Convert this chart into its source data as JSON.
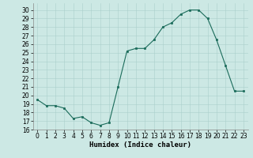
{
  "x": [
    0,
    1,
    2,
    3,
    4,
    5,
    6,
    7,
    8,
    9,
    10,
    11,
    12,
    13,
    14,
    15,
    16,
    17,
    18,
    19,
    20,
    21,
    22,
    23
  ],
  "y": [
    19.5,
    18.8,
    18.8,
    18.5,
    17.3,
    17.5,
    16.8,
    16.5,
    16.8,
    21.0,
    25.2,
    25.5,
    25.5,
    26.5,
    28.0,
    28.5,
    29.5,
    30.0,
    30.0,
    29.0,
    26.5,
    23.5,
    20.5,
    20.5
  ],
  "line_color": "#1a6b5a",
  "marker": "s",
  "marker_size": 2,
  "bg_color": "#cce8e4",
  "grid_color": "#aacfcb",
  "xlabel": "Humidex (Indice chaleur)",
  "xlim": [
    -0.5,
    23.5
  ],
  "ylim": [
    16,
    30.8
  ],
  "xticks": [
    0,
    1,
    2,
    3,
    4,
    5,
    6,
    7,
    8,
    9,
    10,
    11,
    12,
    13,
    14,
    15,
    16,
    17,
    18,
    19,
    20,
    21,
    22,
    23
  ],
  "yticks": [
    16,
    17,
    18,
    19,
    20,
    21,
    22,
    23,
    24,
    25,
    26,
    27,
    28,
    29,
    30
  ],
  "tick_fontsize": 5.5,
  "xlabel_fontsize": 6.5
}
